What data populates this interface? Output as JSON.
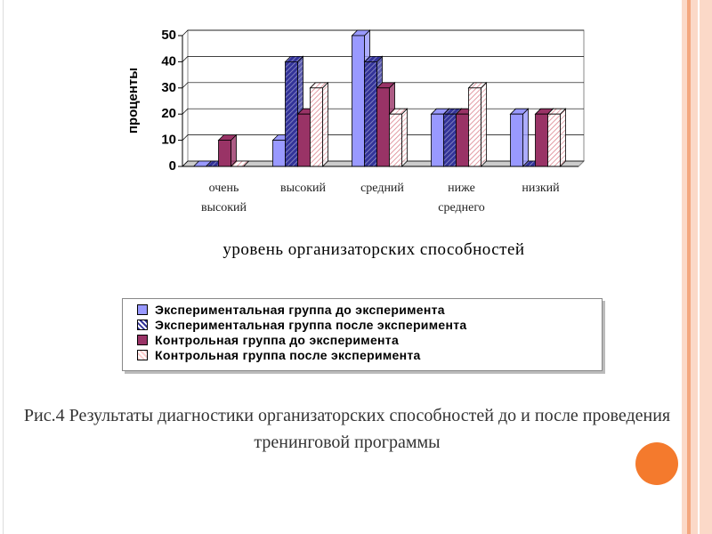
{
  "chart_data": {
    "type": "bar",
    "y_label": "проценты",
    "x_label": "уровень организаторских способностей",
    "categories": [
      "очень высокий",
      "высокий",
      "средний",
      "ниже среднего",
      "низкий"
    ],
    "series": [
      {
        "name": "Экспериментальная группа до эксперимента",
        "color": "#9999ff",
        "hatch": false,
        "values": [
          0,
          10,
          50,
          20,
          20
        ]
      },
      {
        "name": "Экспериментальная группа после эксперимента",
        "color": "#333399",
        "hatch": true,
        "values": [
          0,
          40,
          40,
          20,
          0
        ]
      },
      {
        "name": "Контрольная группа до эксперимента",
        "color": "#993366",
        "hatch": false,
        "values": [
          10,
          20,
          30,
          20,
          20
        ]
      },
      {
        "name": "Контрольная группа после эксперимента",
        "color": "#ffcccc",
        "hatch": true,
        "values": [
          0,
          30,
          20,
          30,
          20
        ]
      }
    ],
    "ylim": [
      0,
      50
    ],
    "yticks": [
      0,
      10,
      20,
      30,
      40,
      50
    ],
    "grid": true
  },
  "caption": "Рис.4 Результаты диагностики организаторских способностей до и после проведения тренинговой программы"
}
